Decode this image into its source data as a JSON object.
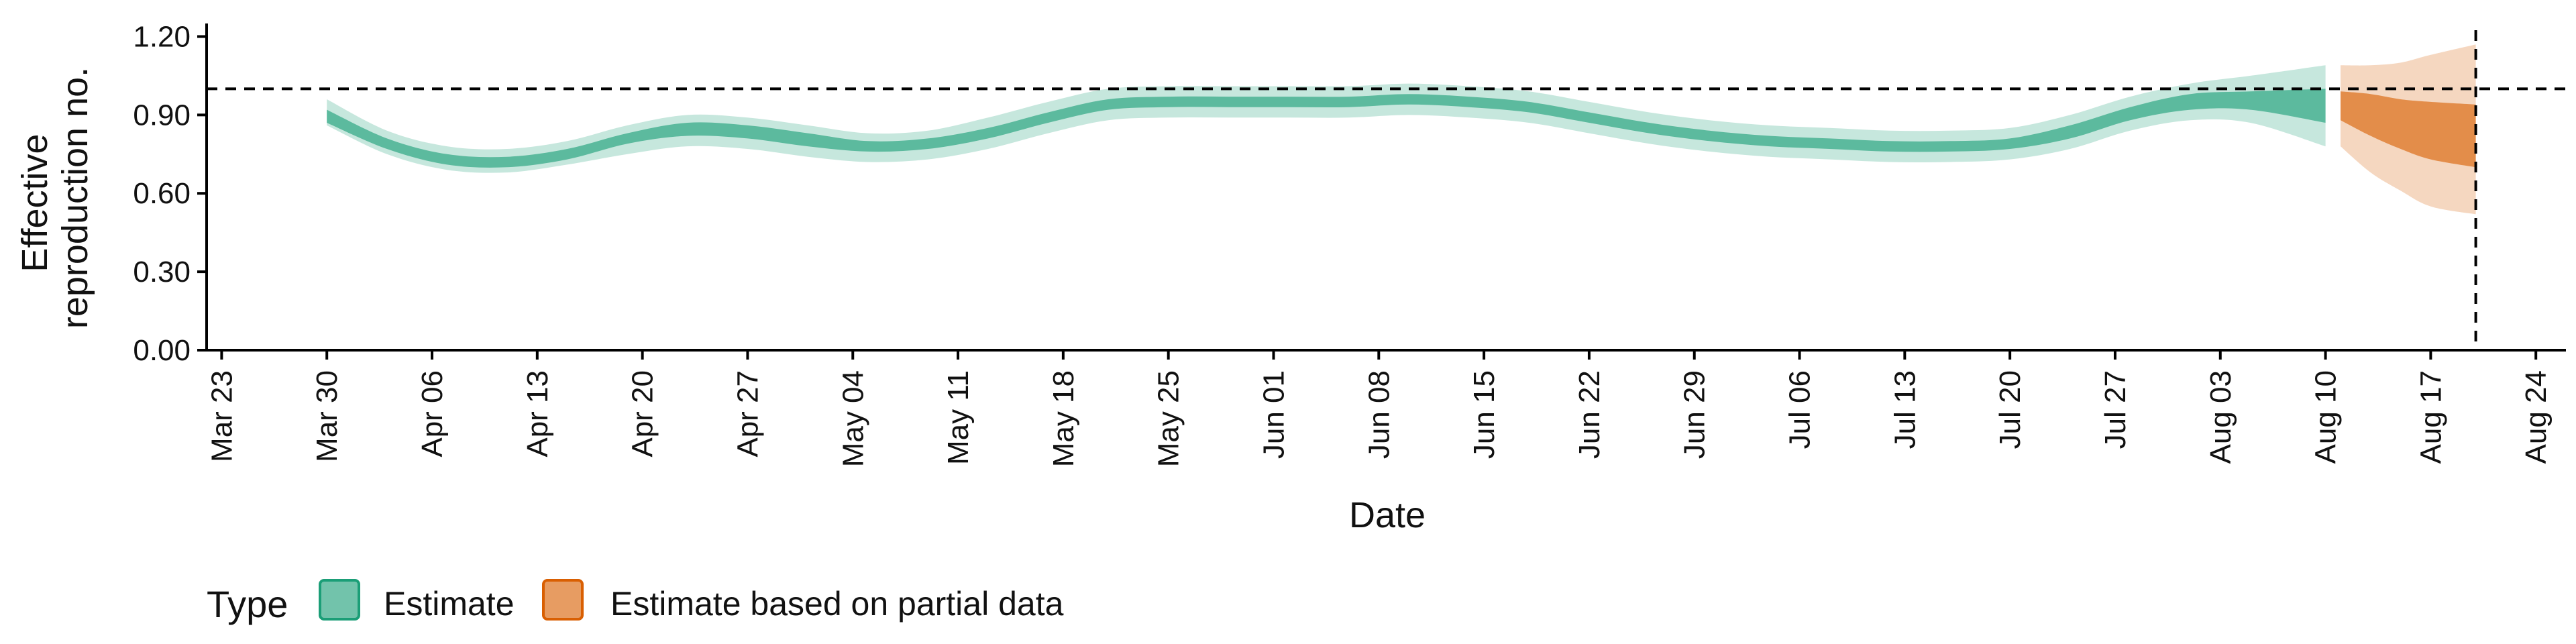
{
  "chart_data": {
    "type": "area",
    "xlabel": "Date",
    "ylabel": [
      "Effective",
      "reproduction no."
    ],
    "ylim": [
      0.0,
      1.25
    ],
    "yticks": [
      0.0,
      0.3,
      0.6,
      0.9,
      1.2
    ],
    "ytick_labels": [
      "0.00",
      "0.30",
      "0.60",
      "0.90",
      "1.20"
    ],
    "xlim": [
      "2020-03-22",
      "2020-08-26"
    ],
    "xticks": [
      "2020-03-23",
      "2020-03-30",
      "2020-04-06",
      "2020-04-13",
      "2020-04-20",
      "2020-04-27",
      "2020-05-04",
      "2020-05-11",
      "2020-05-18",
      "2020-05-25",
      "2020-06-01",
      "2020-06-08",
      "2020-06-15",
      "2020-06-22",
      "2020-06-29",
      "2020-07-06",
      "2020-07-13",
      "2020-07-20",
      "2020-07-27",
      "2020-08-03",
      "2020-08-10",
      "2020-08-17",
      "2020-08-24"
    ],
    "xtick_labels": [
      "Mar 23",
      "Mar 30",
      "Apr 06",
      "Apr 13",
      "Apr 20",
      "Apr 27",
      "May 04",
      "May 11",
      "May 18",
      "May 25",
      "Jun 01",
      "Jun 08",
      "Jun 15",
      "Jun 22",
      "Jun 29",
      "Jul 06",
      "Jul 13",
      "Jul 20",
      "Jul 27",
      "Aug 03",
      "Aug 10",
      "Aug 17",
      "Aug 24"
    ],
    "reference_lines": {
      "horizontal_y": 1.0,
      "vertical_date": "2020-08-20"
    },
    "grid": false,
    "legend_position": "bottom-left",
    "legend_title": "Type",
    "series": [
      {
        "name": "Estimate",
        "color": "#1b9e77",
        "x": [
          "2020-03-30",
          "2020-04-03",
          "2020-04-07",
          "2020-04-11",
          "2020-04-15",
          "2020-04-19",
          "2020-04-23",
          "2020-04-27",
          "2020-05-01",
          "2020-05-05",
          "2020-05-09",
          "2020-05-13",
          "2020-05-17",
          "2020-05-21",
          "2020-05-25",
          "2020-05-29",
          "2020-06-02",
          "2020-06-06",
          "2020-06-10",
          "2020-06-14",
          "2020-06-18",
          "2020-06-22",
          "2020-06-26",
          "2020-06-30",
          "2020-07-04",
          "2020-07-08",
          "2020-07-12",
          "2020-07-16",
          "2020-07-20",
          "2020-07-24",
          "2020-07-28",
          "2020-08-01",
          "2020-08-05",
          "2020-08-10"
        ],
        "outer_lower": [
          0.86,
          0.75,
          0.69,
          0.68,
          0.71,
          0.75,
          0.78,
          0.77,
          0.74,
          0.72,
          0.73,
          0.77,
          0.83,
          0.88,
          0.89,
          0.89,
          0.89,
          0.89,
          0.9,
          0.89,
          0.87,
          0.83,
          0.79,
          0.76,
          0.74,
          0.73,
          0.72,
          0.72,
          0.73,
          0.77,
          0.84,
          0.88,
          0.87,
          0.78
        ],
        "inner_lower": [
          0.87,
          0.77,
          0.71,
          0.7,
          0.73,
          0.79,
          0.82,
          0.81,
          0.78,
          0.76,
          0.77,
          0.81,
          0.87,
          0.92,
          0.93,
          0.93,
          0.93,
          0.93,
          0.94,
          0.93,
          0.91,
          0.87,
          0.83,
          0.8,
          0.78,
          0.77,
          0.76,
          0.76,
          0.77,
          0.81,
          0.88,
          0.92,
          0.92,
          0.87
        ],
        "inner_upper": [
          0.92,
          0.81,
          0.75,
          0.74,
          0.77,
          0.83,
          0.87,
          0.86,
          0.83,
          0.8,
          0.81,
          0.85,
          0.91,
          0.96,
          0.97,
          0.97,
          0.97,
          0.97,
          0.98,
          0.97,
          0.95,
          0.91,
          0.87,
          0.84,
          0.82,
          0.81,
          0.8,
          0.8,
          0.81,
          0.86,
          0.93,
          0.98,
          0.99,
          1.0
        ],
        "outer_upper": [
          0.96,
          0.84,
          0.78,
          0.77,
          0.8,
          0.86,
          0.9,
          0.89,
          0.86,
          0.83,
          0.84,
          0.89,
          0.95,
          1.0,
          1.01,
          1.01,
          1.01,
          1.01,
          1.02,
          1.01,
          0.99,
          0.95,
          0.91,
          0.88,
          0.86,
          0.85,
          0.84,
          0.84,
          0.85,
          0.9,
          0.97,
          1.02,
          1.05,
          1.09
        ]
      },
      {
        "name": "Estimate based on partial data",
        "color": "#d95f02",
        "x": [
          "2020-08-11",
          "2020-08-13",
          "2020-08-15",
          "2020-08-17",
          "2020-08-20"
        ],
        "outer_lower": [
          0.78,
          0.68,
          0.61,
          0.55,
          0.52
        ],
        "inner_lower": [
          0.88,
          0.82,
          0.77,
          0.73,
          0.7
        ],
        "inner_upper": [
          0.99,
          0.98,
          0.96,
          0.95,
          0.94
        ],
        "outer_upper": [
          1.09,
          1.09,
          1.1,
          1.13,
          1.17
        ]
      }
    ]
  }
}
